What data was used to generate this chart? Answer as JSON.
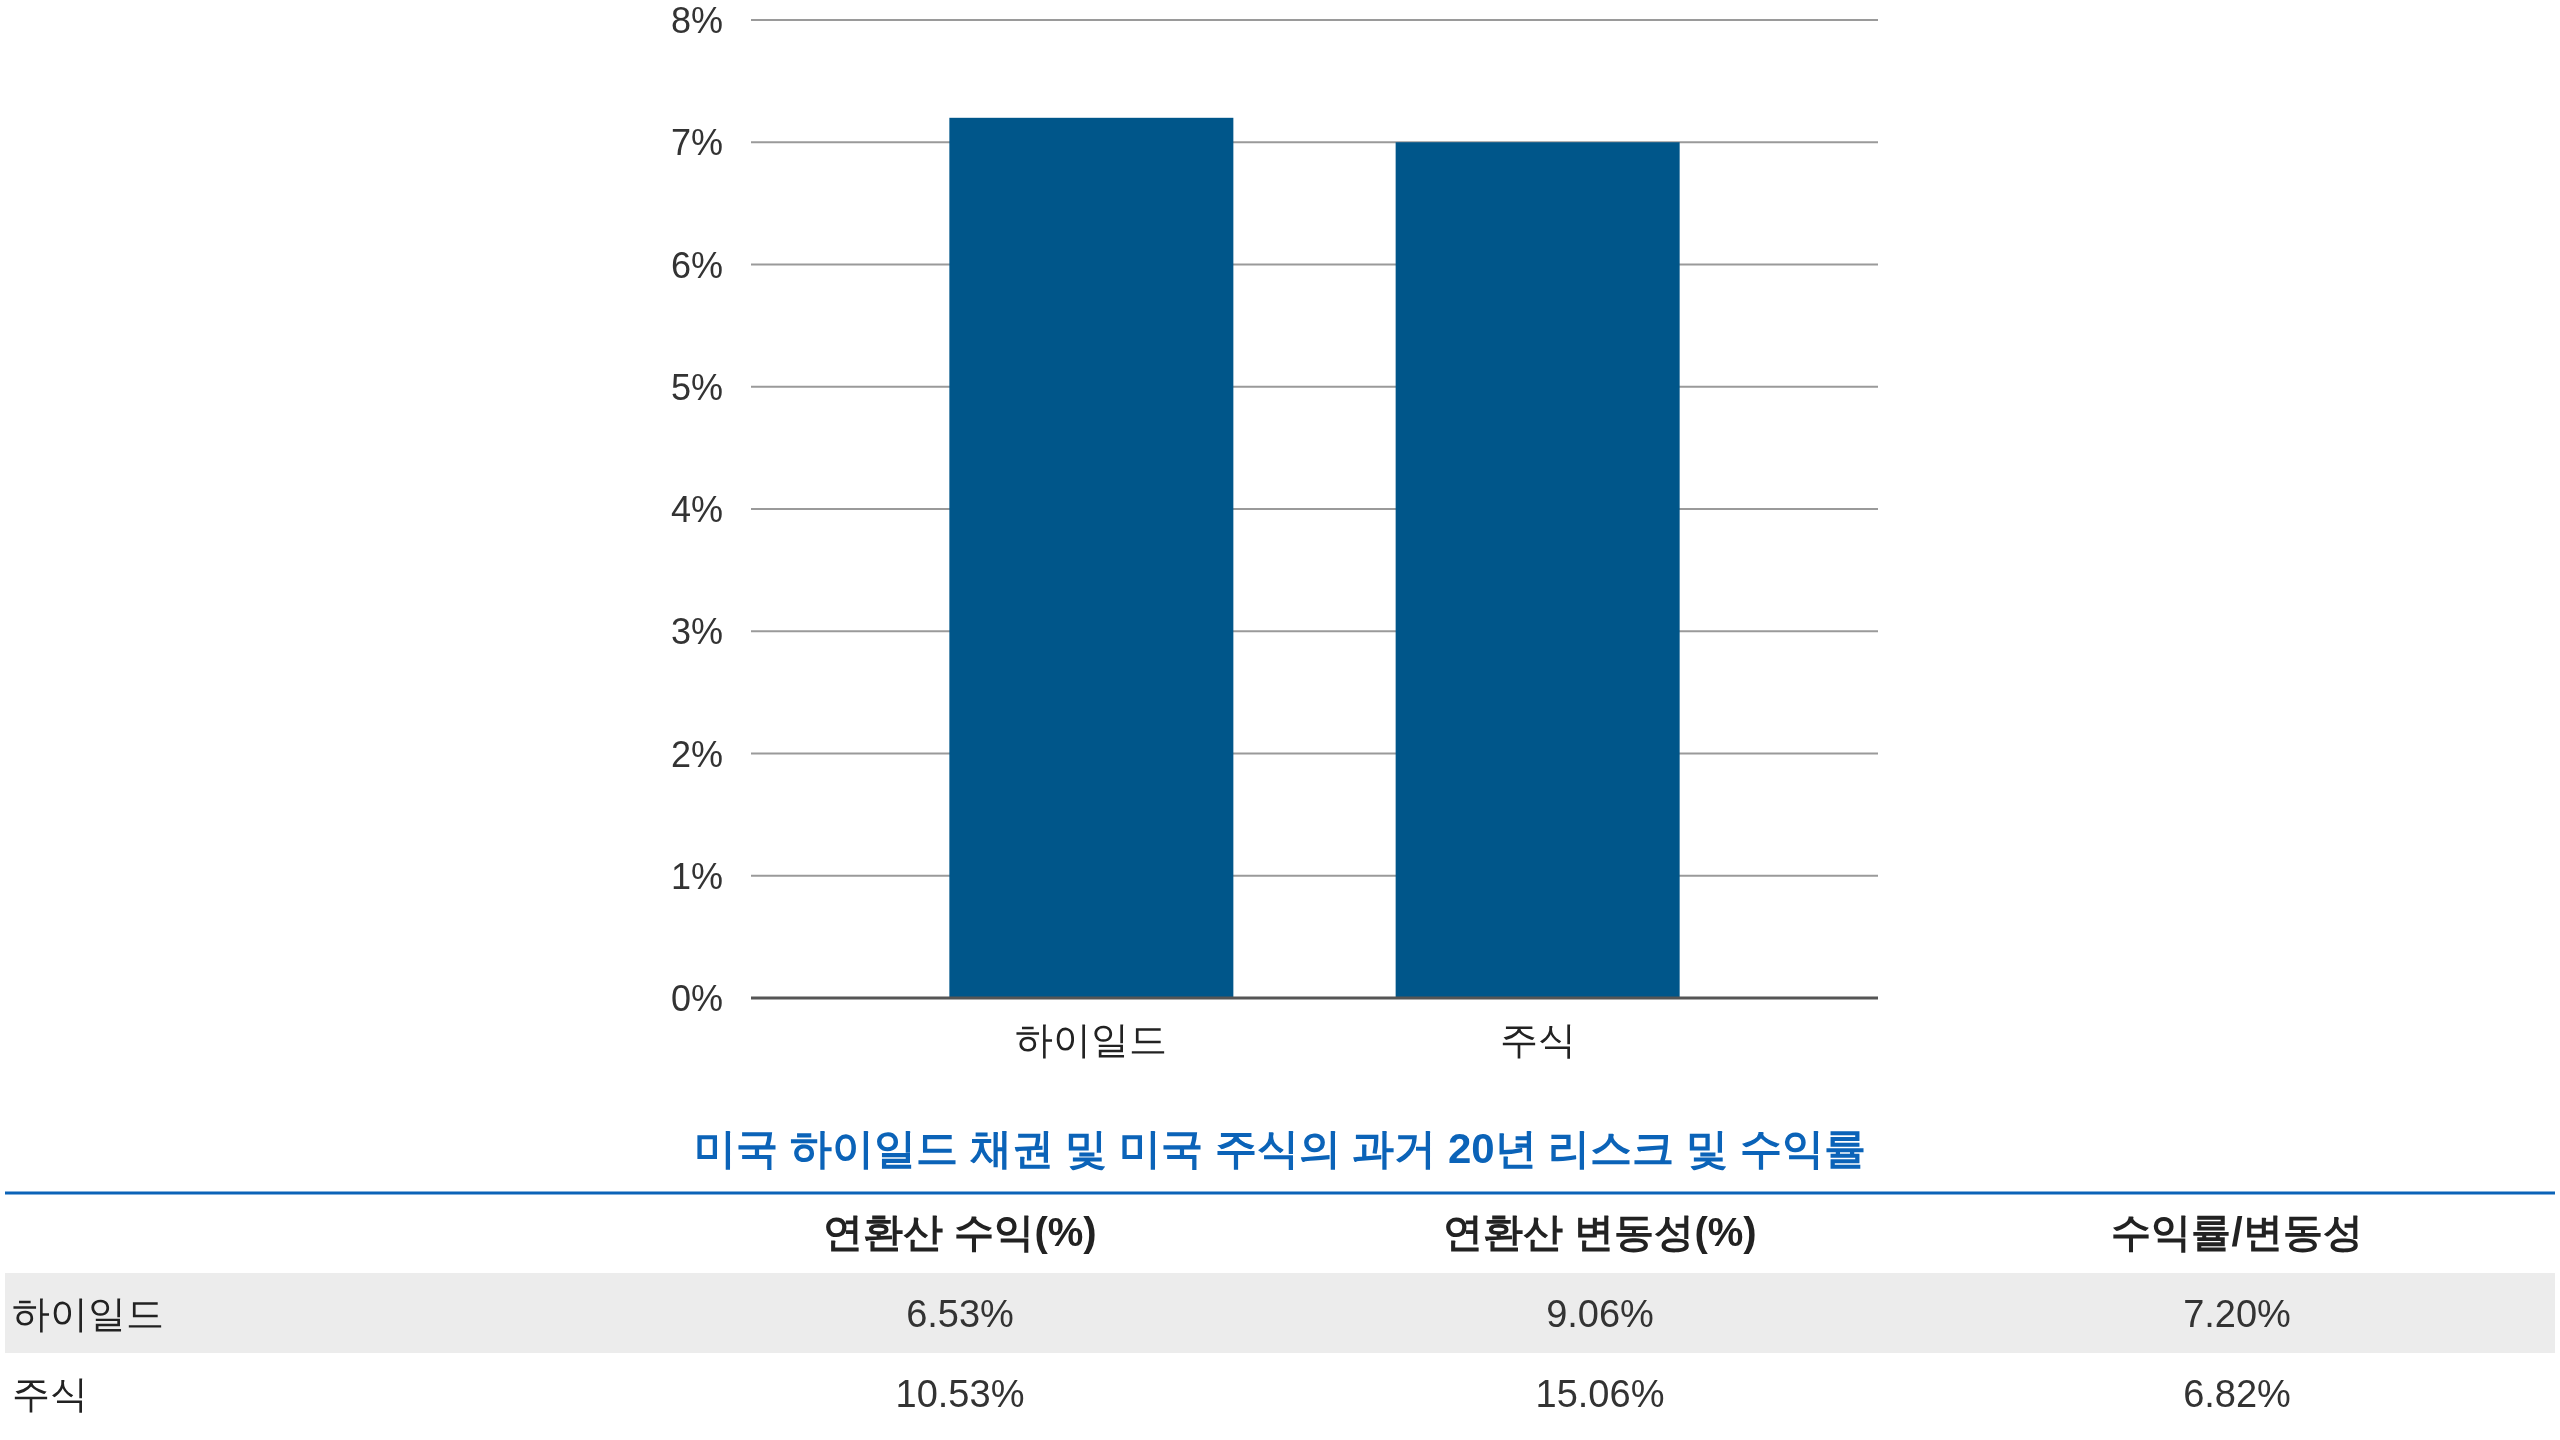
{
  "chart_data": [
    {
      "type": "bar",
      "categories": [
        "하이일드",
        "주식"
      ],
      "values": [
        7.2,
        7.0
      ],
      "color": "#00568a",
      "ylim": [
        0,
        8
      ],
      "yticks": [
        {
          "value": 0,
          "label": "0%"
        },
        {
          "value": 1,
          "label": "1%"
        },
        {
          "value": 2,
          "label": "2%"
        },
        {
          "value": 3,
          "label": "3%"
        },
        {
          "value": 4,
          "label": "4%"
        },
        {
          "value": 5,
          "label": "5%"
        },
        {
          "value": 6,
          "label": "6%"
        },
        {
          "value": 7,
          "label": "7%"
        },
        {
          "value": 8,
          "label": "8%"
        }
      ],
      "grid": "y"
    },
    {
      "type": "other",
      "title": "미국 하이일드 채권 및 미국 주식의 과거 20년 리스크 및 수익률",
      "categories": [
        "연환산 수익(%)",
        "연환산 변동성(%)",
        "수익률/변동성"
      ],
      "y_categories": [
        "하이일드",
        "주식"
      ],
      "cell_labels": [
        [
          "6.53%",
          "9.06%",
          "7.20%"
        ],
        [
          "10.53%",
          "15.06%",
          "6.82%"
        ]
      ]
    }
  ]
}
